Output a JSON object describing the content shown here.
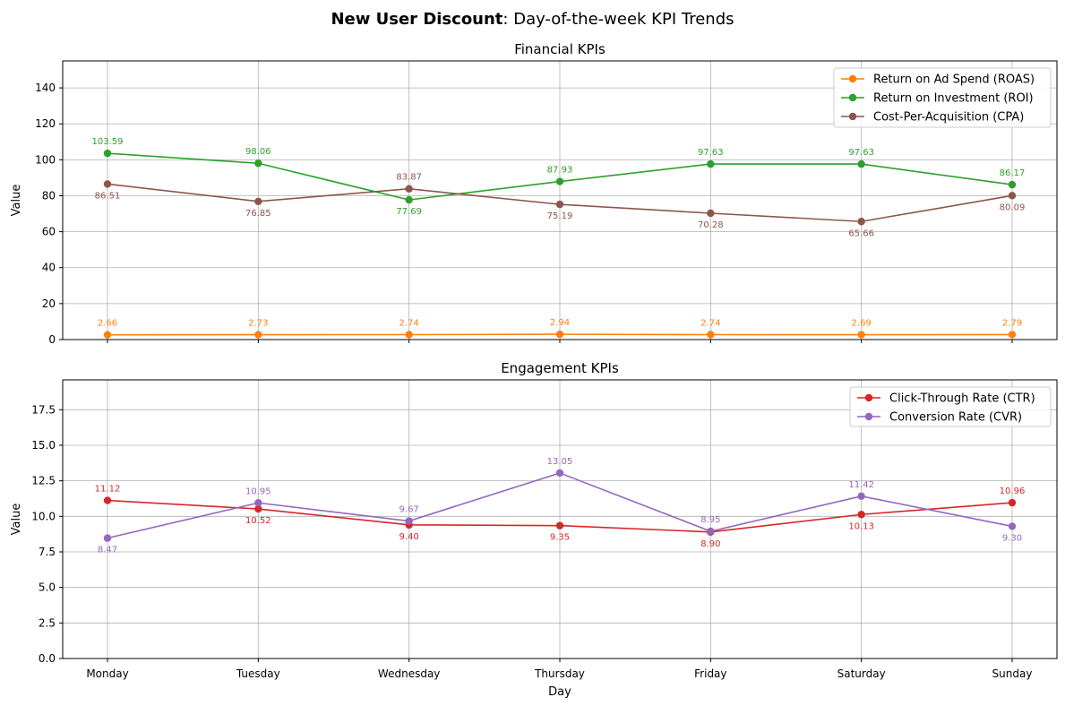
{
  "suptitle": {
    "bold": "New User Discount",
    "rest": ": Day-of-the-week KPI Trends"
  },
  "xlabel": "Day",
  "chart_data": [
    {
      "type": "line",
      "title": "Financial KPIs",
      "xlabel": "",
      "ylabel": "Value",
      "categories": [
        "Monday",
        "Tuesday",
        "Wednesday",
        "Thursday",
        "Friday",
        "Saturday",
        "Sunday"
      ],
      "ylim": [
        0,
        155
      ],
      "yticks": [
        0,
        20,
        40,
        60,
        80,
        100,
        120,
        140
      ],
      "ytick_labels": [
        "0",
        "20",
        "40",
        "60",
        "80",
        "100",
        "120",
        "140"
      ],
      "grid": true,
      "legend_position": "top-right",
      "series": [
        {
          "name": "Return on Ad Spend (ROAS)",
          "color": "#ff7f0e",
          "values": [
            2.66,
            2.73,
            2.74,
            2.94,
            2.74,
            2.69,
            2.79
          ],
          "labels": [
            "2.66",
            "2.73",
            "2.74",
            "2.94",
            "2.74",
            "2.69",
            "2.79"
          ],
          "label_pos": [
            "above",
            "above",
            "above",
            "above",
            "above",
            "above",
            "above"
          ]
        },
        {
          "name": "Return on Investment (ROI)",
          "color": "#2ca02c",
          "values": [
            103.59,
            98.06,
            77.69,
            87.93,
            97.63,
            97.63,
            86.17
          ],
          "labels": [
            "103.59",
            "98.06",
            "77.69",
            "87.93",
            "97.63",
            "97.63",
            "86.17"
          ],
          "label_pos": [
            "above",
            "above",
            "below",
            "above",
            "above",
            "above",
            "above"
          ]
        },
        {
          "name": "Cost-Per-Acquisition (CPA)",
          "color": "#8c564b",
          "values": [
            86.51,
            76.85,
            83.87,
            75.19,
            70.28,
            65.66,
            80.09
          ],
          "labels": [
            "86.51",
            "76.85",
            "83.87",
            "75.19",
            "70.28",
            "65.66",
            "80.09"
          ],
          "label_pos": [
            "below",
            "below",
            "above",
            "below",
            "below",
            "below",
            "below"
          ]
        }
      ]
    },
    {
      "type": "line",
      "title": "Engagement KPIs",
      "xlabel": "Day",
      "ylabel": "Value",
      "categories": [
        "Monday",
        "Tuesday",
        "Wednesday",
        "Thursday",
        "Friday",
        "Saturday",
        "Sunday"
      ],
      "ylim": [
        0,
        19.6
      ],
      "yticks": [
        0,
        2.5,
        5,
        7.5,
        10,
        12.5,
        15,
        17.5
      ],
      "ytick_labels": [
        "0.0",
        "2.5",
        "5.0",
        "7.5",
        "10.0",
        "12.5",
        "15.0",
        "17.5"
      ],
      "grid": true,
      "legend_position": "top-right",
      "series": [
        {
          "name": "Click-Through Rate (CTR)",
          "color": "#d62728",
          "values": [
            11.12,
            10.52,
            9.4,
            9.35,
            8.9,
            10.13,
            10.96
          ],
          "labels": [
            "11.12",
            "10.52",
            "9.40",
            "9.35",
            "8.90",
            "10.13",
            "10.96"
          ],
          "label_pos": [
            "above",
            "below",
            "below",
            "below",
            "below",
            "below",
            "above"
          ]
        },
        {
          "name": "Conversion Rate (CVR)",
          "color": "#9467bd",
          "values": [
            8.47,
            10.95,
            9.67,
            13.05,
            8.95,
            11.42,
            9.3
          ],
          "labels": [
            "8.47",
            "10.95",
            "9.67",
            "13.05",
            "8.95",
            "11.42",
            "9.30"
          ],
          "label_pos": [
            "below",
            "above",
            "above",
            "above",
            "above",
            "above",
            "below"
          ]
        }
      ]
    }
  ]
}
